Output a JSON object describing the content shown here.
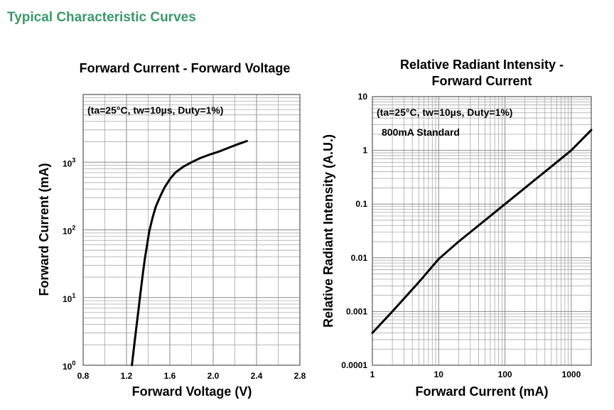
{
  "section_title": "Typical Characteristic Curves",
  "chart_data": [
    {
      "type": "line",
      "title": "Forward Current - Forward Voltage",
      "xlabel": "Forward Voltage (V)",
      "ylabel": "Forward Current (mA)",
      "x_scale": "linear",
      "y_scale": "log",
      "xlim": [
        0.8,
        2.8
      ],
      "ylim": [
        1,
        10000
      ],
      "grid": true,
      "x_ticks": [
        "0.8",
        "1.2",
        "1.6",
        "2.0",
        "2.4",
        "2.8"
      ],
      "y_ticks": [
        {
          "base": "10",
          "exp": "0"
        },
        {
          "base": "10",
          "exp": "1"
        },
        {
          "base": "10",
          "exp": "2"
        },
        {
          "base": "10",
          "exp": "3"
        }
      ],
      "annotations": [
        "(ta=25°C, tw=10µs, Duty=1%)"
      ],
      "series": [
        {
          "x": [
            1.25,
            1.27,
            1.29,
            1.31,
            1.33,
            1.35,
            1.37,
            1.39,
            1.41,
            1.44,
            1.47,
            1.51,
            1.55,
            1.6,
            1.65,
            1.72,
            1.8,
            1.88,
            1.97,
            2.06,
            2.15,
            2.23,
            2.31
          ],
          "y": [
            1,
            1.9,
            3.5,
            6.5,
            12,
            22,
            38,
            60,
            95,
            150,
            220,
            310,
            420,
            560,
            700,
            850,
            1000,
            1150,
            1300,
            1450,
            1650,
            1850,
            2050
          ]
        }
      ]
    },
    {
      "type": "line",
      "title": "Relative Radiant Intensity -\nForward Current",
      "title_lines": [
        "Relative Radiant Intensity -",
        "Forward Current"
      ],
      "xlabel": "Forward Current (mA)",
      "ylabel": "Relative Radiant Intensity (A.U.)",
      "x_scale": "log",
      "y_scale": "log",
      "xlim": [
        1,
        2000
      ],
      "ylim": [
        0.0001,
        10
      ],
      "grid": true,
      "x_ticks": [
        "1",
        "10",
        "100",
        "1000"
      ],
      "y_ticks": [
        "0.0001",
        "0.001",
        "0.01",
        "0.1",
        "1",
        "10"
      ],
      "annotations": [
        "(ta=25°C, tw=10µs, Duty=1%)",
        "800mA Standard"
      ],
      "series": [
        {
          "x": [
            1,
            2,
            5,
            10,
            20,
            50,
            100,
            200,
            500,
            1000,
            2000
          ],
          "y": [
            0.0004,
            0.001,
            0.0035,
            0.0095,
            0.02,
            0.05,
            0.1,
            0.2,
            0.5,
            1.0,
            2.4
          ]
        }
      ]
    }
  ]
}
